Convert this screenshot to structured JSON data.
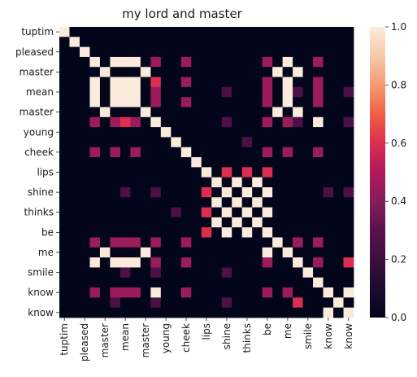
{
  "chart_data": {
    "type": "heatmap",
    "title": "my lord and master",
    "xlabel": "",
    "ylabel": "",
    "x_tick_labels": [
      "tuptim",
      "pleased",
      "master",
      "mean",
      "master",
      "young",
      "cheek",
      "lips",
      "shine",
      "thinks",
      "be",
      "me",
      "smile",
      "know",
      "know"
    ],
    "y_tick_labels": [
      "tuptim",
      "pleased",
      "master",
      "mean",
      "master",
      "young",
      "cheek",
      "lips",
      "shine",
      "thinks",
      "be",
      "me",
      "smile",
      "know",
      "know"
    ],
    "colorbar": {
      "range": [
        0,
        1
      ],
      "ticks": [
        "0.0",
        "0.2",
        "0.4",
        "0.6",
        "0.8",
        "1.0"
      ]
    },
    "colormap": "rocket",
    "n_tokens": 29,
    "matrix": [
      [
        1,
        0,
        0,
        0,
        0,
        0,
        0,
        0,
        0,
        0,
        0,
        0,
        0,
        0,
        0,
        0,
        0,
        0,
        0,
        0,
        0,
        0,
        0,
        0,
        0,
        0,
        0,
        0,
        0
      ],
      [
        0,
        1,
        0,
        0,
        0,
        0,
        0,
        0,
        0,
        0,
        0,
        0,
        0,
        0,
        0,
        0,
        0,
        0,
        0,
        0,
        0,
        0,
        0,
        0,
        0,
        0,
        0,
        0,
        0
      ],
      [
        0,
        0,
        1,
        0,
        0,
        0,
        0,
        0,
        0,
        0,
        0,
        0,
        0,
        0,
        0,
        0,
        0,
        0,
        0,
        0,
        0,
        0,
        0,
        0,
        0,
        0,
        0,
        0,
        0
      ],
      [
        0,
        0,
        0,
        1,
        0,
        1,
        1,
        1,
        0,
        0.45,
        0,
        0,
        0.45,
        0,
        0,
        0,
        0,
        0,
        0,
        0,
        0.45,
        0,
        1,
        0,
        0,
        0.45,
        0,
        0,
        0
      ],
      [
        0,
        0,
        0,
        0,
        1,
        0,
        0,
        0,
        1,
        0,
        0,
        0,
        0,
        0,
        0,
        0,
        0,
        0,
        0,
        0,
        0,
        1,
        0,
        1,
        0,
        0,
        0,
        0,
        0
      ],
      [
        0,
        0,
        0,
        1,
        0,
        1,
        1,
        1,
        0,
        0.6,
        0,
        0,
        0.45,
        0,
        0,
        0,
        0,
        0,
        0,
        0,
        0.45,
        0,
        1,
        0,
        0,
        0.45,
        0,
        0,
        0
      ],
      [
        0,
        0,
        0,
        1,
        0,
        1,
        1,
        1,
        0,
        0.45,
        0,
        0,
        0,
        0,
        0,
        0,
        0.25,
        0,
        0,
        0,
        0.45,
        0,
        1,
        0.25,
        0,
        0.45,
        0,
        0,
        0.25
      ],
      [
        0,
        0,
        0,
        1,
        0,
        1,
        1,
        1,
        0,
        0.45,
        0,
        0,
        0.45,
        0,
        0,
        0,
        0,
        0,
        0,
        0,
        0.45,
        0,
        1,
        0,
        0,
        0.45,
        0,
        0,
        0
      ],
      [
        0,
        0,
        0,
        0,
        1,
        0,
        0,
        0,
        1,
        0,
        0,
        0,
        0,
        0,
        0,
        0,
        0,
        0,
        0,
        0,
        0,
        1,
        0,
        1,
        0,
        0,
        0,
        0,
        0
      ],
      [
        0,
        0,
        0,
        0.45,
        0,
        0.45,
        0.6,
        0.45,
        0,
        1,
        0,
        0,
        0,
        0,
        0,
        0,
        0.25,
        0,
        0,
        0,
        0.45,
        0,
        0.45,
        0.25,
        0,
        1,
        0,
        0,
        0.25
      ],
      [
        0,
        0,
        0,
        0,
        0,
        0,
        0,
        0,
        0,
        0,
        1,
        0,
        0,
        0,
        0,
        0,
        0,
        0,
        0,
        0,
        0,
        0,
        0,
        0,
        0,
        0,
        0,
        0,
        0
      ],
      [
        0,
        0,
        0,
        0,
        0,
        0,
        0,
        0,
        0,
        0,
        0,
        1,
        0,
        0,
        0,
        0,
        0,
        0,
        0.25,
        0,
        0,
        0,
        0,
        0,
        0,
        0,
        0,
        0,
        0
      ],
      [
        0,
        0,
        0,
        0.45,
        0,
        0.45,
        0,
        0.45,
        0,
        0,
        0,
        0,
        1,
        0,
        0,
        0,
        0,
        0,
        0,
        0,
        0.45,
        0,
        0.45,
        0,
        0,
        0.45,
        0,
        0,
        0
      ],
      [
        0,
        0,
        0,
        0,
        0,
        0,
        0,
        0,
        0,
        0,
        0,
        0,
        0,
        1,
        0,
        0,
        0,
        0,
        0,
        0,
        0,
        0,
        0,
        0,
        0,
        0,
        0,
        0,
        0
      ],
      [
        0,
        0,
        0,
        0,
        0,
        0,
        0,
        0,
        0,
        0,
        0,
        0,
        0,
        0,
        1,
        0,
        0.6,
        0,
        0.6,
        0,
        0.6,
        0,
        0,
        0,
        0,
        0,
        0,
        0,
        0
      ],
      [
        0,
        0,
        0,
        0,
        0,
        0,
        0,
        0,
        0,
        0,
        0,
        0,
        0,
        0,
        0,
        1,
        0,
        1,
        0,
        1,
        0,
        0,
        0,
        0,
        0,
        0,
        0,
        0,
        0
      ],
      [
        0,
        0,
        0,
        0,
        0,
        0,
        0.25,
        0,
        0,
        0.25,
        0,
        0,
        0,
        0,
        0.6,
        0,
        1,
        0,
        1,
        0,
        1,
        0,
        0,
        0,
        0,
        0,
        0.25,
        0,
        0.25
      ],
      [
        0,
        0,
        0,
        0,
        0,
        0,
        0,
        0,
        0,
        0,
        0,
        0,
        0,
        0,
        0,
        1,
        0,
        1,
        0,
        1,
        0,
        0,
        0,
        0,
        0,
        0,
        0,
        0,
        0
      ],
      [
        0,
        0,
        0,
        0,
        0,
        0,
        0,
        0,
        0,
        0,
        0,
        0.25,
        0,
        0,
        0.6,
        0,
        1,
        0,
        1,
        0,
        1,
        0,
        0,
        0,
        0,
        0,
        0,
        0,
        0
      ],
      [
        0,
        0,
        0,
        0,
        0,
        0,
        0,
        0,
        0,
        0,
        0,
        0,
        0,
        0,
        0,
        1,
        0,
        1,
        0,
        1,
        0,
        0,
        0,
        0,
        0,
        0,
        0,
        0,
        0
      ],
      [
        0,
        0,
        0,
        0,
        0,
        0,
        0,
        0,
        0,
        0,
        0,
        0,
        0,
        0,
        0.6,
        0,
        1,
        0,
        1,
        0,
        1,
        0,
        0,
        0,
        0,
        0,
        0,
        0,
        0
      ],
      [
        0,
        0,
        0,
        0.45,
        0,
        0.45,
        0.45,
        0.45,
        0,
        0.45,
        0,
        0,
        0.45,
        0,
        0,
        0,
        0,
        0,
        0,
        0,
        0,
        1,
        0,
        0.45,
        0,
        0.45,
        0,
        0,
        0
      ],
      [
        0,
        0,
        0,
        0,
        1,
        0,
        0,
        0,
        1,
        0,
        0,
        0,
        0,
        0,
        0,
        0,
        0,
        0,
        0,
        0,
        1,
        0,
        1,
        0,
        0,
        0,
        0,
        0,
        0
      ],
      [
        0,
        0,
        0,
        1,
        0,
        1,
        1,
        1,
        0,
        0.45,
        0,
        0,
        0.45,
        0,
        0,
        0,
        0,
        0,
        0,
        0,
        0.45,
        0,
        0,
        1,
        0,
        0.45,
        0,
        0,
        0.6
      ],
      [
        0,
        0,
        0,
        0,
        0,
        0,
        0.25,
        0,
        0,
        0.25,
        0,
        0,
        0,
        0,
        0,
        0,
        0.25,
        0,
        0,
        0,
        0,
        0,
        0,
        0,
        1,
        0,
        0,
        0,
        0
      ],
      [
        0,
        0,
        0,
        0,
        0,
        0,
        0,
        0,
        0,
        0,
        0,
        0,
        0,
        0,
        0,
        0,
        0,
        0,
        0,
        0,
        0,
        0,
        0,
        0,
        0,
        1,
        0,
        0,
        0
      ],
      [
        0,
        0,
        0,
        0.45,
        0,
        0.45,
        0.45,
        0.45,
        0,
        1,
        0,
        0,
        0.45,
        0,
        0,
        0,
        0,
        0,
        0,
        0,
        0.45,
        0,
        0.45,
        0,
        0,
        0,
        1,
        0,
        1
      ],
      [
        0,
        0,
        0,
        0,
        0,
        0.25,
        0,
        0,
        0,
        0.25,
        0,
        0,
        0,
        0,
        0,
        0,
        0.25,
        0,
        0,
        0,
        0,
        0,
        0,
        0.6,
        0,
        0,
        0,
        1,
        0
      ],
      [
        0,
        0,
        0,
        0,
        0,
        0,
        0,
        0,
        0,
        0,
        0,
        0,
        0,
        0,
        0,
        0,
        0,
        0,
        0,
        0,
        0,
        0,
        0,
        0,
        0,
        0,
        1,
        0,
        1
      ]
    ]
  }
}
